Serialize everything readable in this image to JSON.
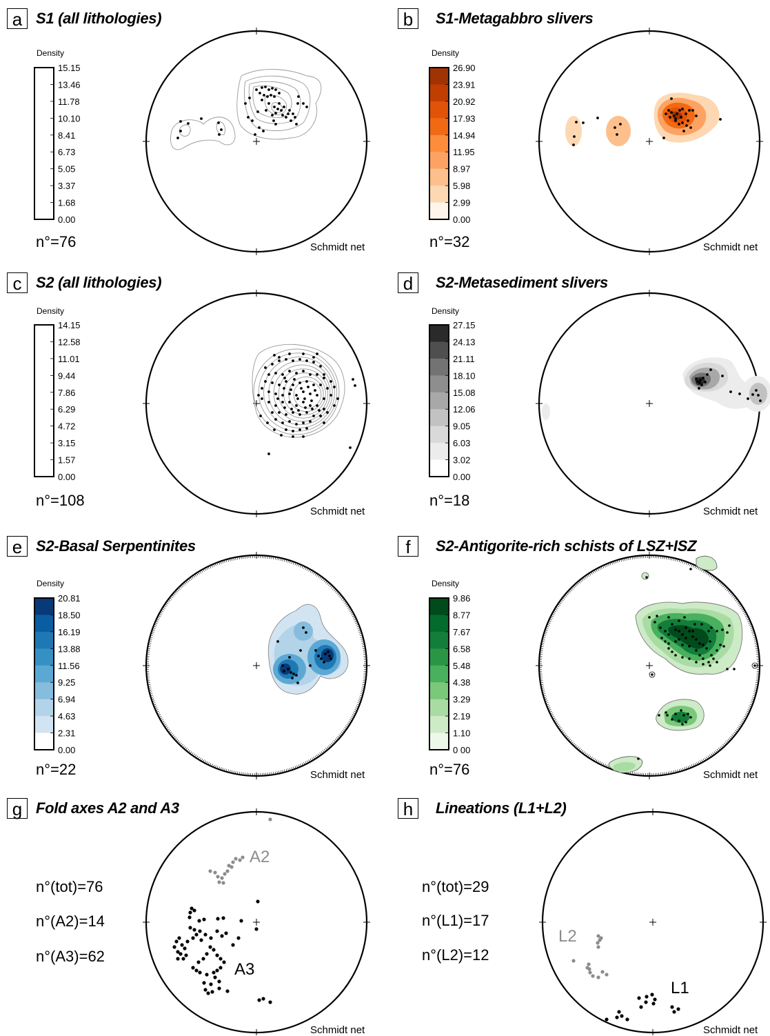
{
  "panels": [
    {
      "letter": "a",
      "title": "S1 (all lithologies)",
      "density_label": "Density",
      "ticks": [
        "15.15",
        "13.46",
        "11.78",
        "10.10",
        "8.41",
        "6.73",
        "5.05",
        "3.37",
        "1.68",
        "0.00"
      ],
      "count": "n°=76",
      "net_label": "Schmidt net",
      "colormap": "white"
    },
    {
      "letter": "b",
      "title": "S1-Metagabbro slivers",
      "density_label": "Density",
      "ticks": [
        "26.90",
        "23.91",
        "20.92",
        "17.93",
        "14.94",
        "11.95",
        "8.97",
        "5.98",
        "2.99",
        "0.00"
      ],
      "count": "n°=32",
      "net_label": "Schmidt net",
      "colormap": "orange"
    },
    {
      "letter": "c",
      "title": "S2 (all lithologies)",
      "density_label": "Density",
      "ticks": [
        "14.15",
        "12.58",
        "11.01",
        "9.44",
        "7.86",
        "6.29",
        "4.72",
        "3.15",
        "1.57",
        "0.00"
      ],
      "count": "n°=108",
      "net_label": "Schmidt net",
      "colormap": "white"
    },
    {
      "letter": "d",
      "title": "S2-Metasediment slivers",
      "density_label": "Density",
      "ticks": [
        "27.15",
        "24.13",
        "21.11",
        "18.10",
        "15.08",
        "12.06",
        "9.05",
        "6.03",
        "3.02",
        "0.00"
      ],
      "count": "n°=18",
      "net_label": "Schmidt net",
      "colormap": "grey"
    },
    {
      "letter": "e",
      "title": "S2-Basal  Serpentinites",
      "density_label": "Density",
      "ticks": [
        "20.81",
        "18.50",
        "16.19",
        "13.88",
        "11.56",
        "9.25",
        "6.94",
        "4.63",
        "2.31",
        "0.00"
      ],
      "count": "n°=22",
      "net_label": "Schmidt net",
      "colormap": "blue"
    },
    {
      "letter": "f",
      "title": "S2-Antigorite-rich schists of LSZ+ISZ",
      "density_label": "Density",
      "ticks": [
        "9.86",
        "8.77",
        "7.67",
        "6.58",
        "5.48",
        "4.38",
        "3.29",
        "2.19",
        "1.10",
        "0 00"
      ],
      "count": "n°=76",
      "net_label": "Schmidt net",
      "colormap": "green"
    },
    {
      "letter": "g",
      "title": "Fold axes A2 and A3",
      "stats": [
        "n°(tot)=76",
        "n°(A2)=14",
        "n°(A3)=62"
      ],
      "net_label": "Schmidt net",
      "series_labels": [
        "A2",
        "A3"
      ]
    },
    {
      "letter": "h",
      "title": "Lineations (L1+L2)",
      "stats": [
        "n°(tot)=29",
        "n°(L1)=17",
        "n°(L2)=12"
      ],
      "net_label": "Schmidt net",
      "series_labels": [
        "L2",
        "L1"
      ]
    }
  ],
  "colors": {
    "white": [
      "#ffffff",
      "#ffffff",
      "#ffffff",
      "#ffffff",
      "#ffffff",
      "#ffffff",
      "#ffffff",
      "#ffffff",
      "#ffffff"
    ],
    "orange": [
      "#fff5eb",
      "#fdd8b3",
      "#fdc08c",
      "#fda262",
      "#fd8c3b",
      "#f16913",
      "#e15307",
      "#c03e02",
      "#a13202"
    ],
    "grey": [
      "#ffffff",
      "#ececec",
      "#d9d9d9",
      "#c2c2c2",
      "#a8a8a8",
      "#8e8e8e",
      "#737373",
      "#4f4f4f",
      "#2a2a2a"
    ],
    "blue": [
      "#ffffff",
      "#d2e4f2",
      "#b3d3e9",
      "#86bcdd",
      "#5ca8d4",
      "#3690c4",
      "#1d78b3",
      "#0a5da0",
      "#083a78"
    ],
    "green": [
      "#edf8ea",
      "#cdebc6",
      "#a8dca3",
      "#7ac87a",
      "#49b05e",
      "#2b9546",
      "#127e3a",
      "#036c2c",
      "#004a1c"
    ],
    "gray_points": "#8c8c8c"
  }
}
